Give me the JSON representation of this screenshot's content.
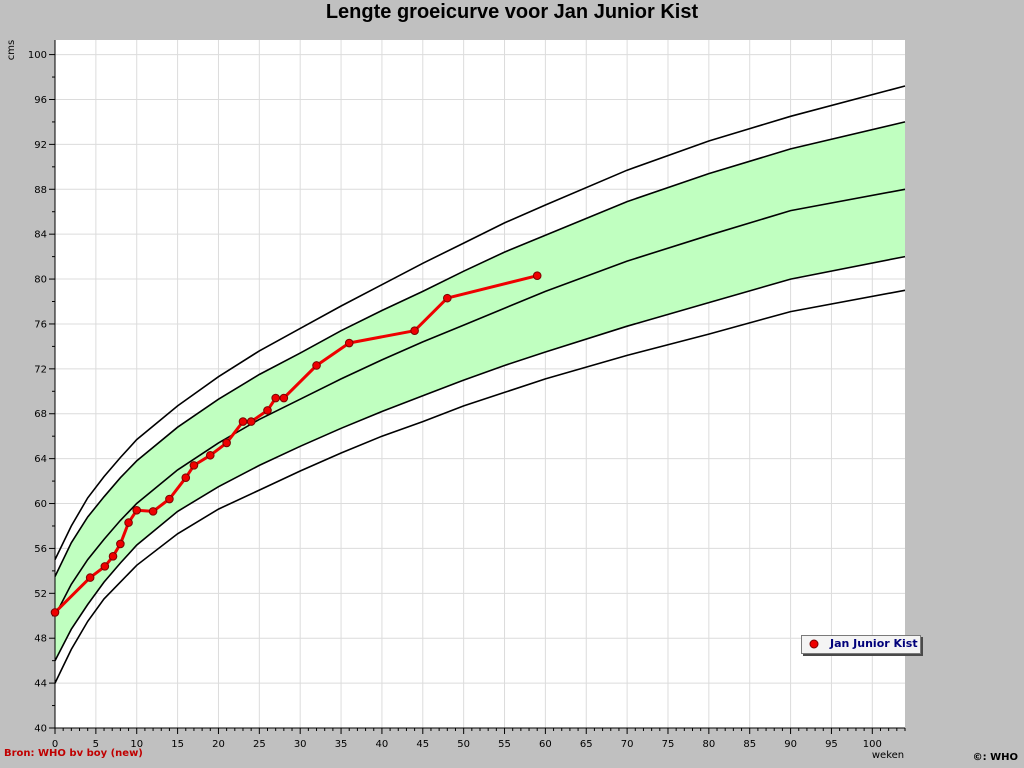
{
  "title": "Lengte groeicurve voor Jan Junior Kist",
  "source_label": "Bron: WHO bv boy (new)",
  "copyright_label": "©: WHO",
  "legend": {
    "label": "Jan Junior Kist"
  },
  "colors": {
    "background": "#c0c0c0",
    "plot_bg": "#ffffff",
    "band": "#c0ffc0",
    "grid": "#dcdcdc",
    "curve": "#000000",
    "series": "#ee0000"
  },
  "chart_data": {
    "type": "line",
    "title": "Lengte groeicurve voor Jan Junior Kist",
    "xlabel": "weken",
    "ylabel": "cms",
    "xlim": [
      0,
      104
    ],
    "ylim": [
      40,
      101.3
    ],
    "grid": true,
    "legend_position": "bottom-right",
    "x_ticks": [
      0,
      5,
      10,
      15,
      20,
      25,
      30,
      35,
      40,
      45,
      50,
      55,
      60,
      65,
      70,
      75,
      80,
      85,
      90,
      95,
      100
    ],
    "y_ticks": [
      40,
      44,
      48,
      52,
      56,
      60,
      64,
      68,
      72,
      76,
      80,
      84,
      88,
      92,
      96,
      100
    ],
    "reference_curves": [
      {
        "points": [
          [
            0,
            44.0
          ],
          [
            2,
            47.0
          ],
          [
            4,
            49.5
          ],
          [
            6,
            51.5
          ],
          [
            8,
            53.0
          ],
          [
            10,
            54.5
          ],
          [
            15,
            57.3
          ],
          [
            20,
            59.5
          ],
          [
            25,
            61.2
          ],
          [
            30,
            62.9
          ],
          [
            35,
            64.5
          ],
          [
            40,
            66.0
          ],
          [
            45,
            67.3
          ],
          [
            50,
            68.7
          ],
          [
            55,
            69.9
          ],
          [
            60,
            71.1
          ],
          [
            70,
            73.2
          ],
          [
            80,
            75.1
          ],
          [
            90,
            77.1
          ],
          [
            104,
            79.0
          ]
        ]
      },
      {
        "points": [
          [
            0,
            46.0
          ],
          [
            2,
            48.8
          ],
          [
            4,
            51.0
          ],
          [
            6,
            53.0
          ],
          [
            8,
            54.7
          ],
          [
            10,
            56.3
          ],
          [
            15,
            59.3
          ],
          [
            20,
            61.5
          ],
          [
            25,
            63.4
          ],
          [
            30,
            65.1
          ],
          [
            35,
            66.7
          ],
          [
            40,
            68.2
          ],
          [
            45,
            69.6
          ],
          [
            50,
            71.0
          ],
          [
            55,
            72.3
          ],
          [
            60,
            73.5
          ],
          [
            70,
            75.8
          ],
          [
            80,
            77.9
          ],
          [
            90,
            80.0
          ],
          [
            104,
            82.0
          ]
        ]
      },
      {
        "points": [
          [
            0,
            50.0
          ],
          [
            2,
            52.8
          ],
          [
            4,
            55.0
          ],
          [
            6,
            56.8
          ],
          [
            8,
            58.5
          ],
          [
            10,
            60.0
          ],
          [
            15,
            63.0
          ],
          [
            20,
            65.4
          ],
          [
            25,
            67.5
          ],
          [
            30,
            69.3
          ],
          [
            35,
            71.1
          ],
          [
            40,
            72.8
          ],
          [
            45,
            74.4
          ],
          [
            50,
            75.9
          ],
          [
            55,
            77.4
          ],
          [
            60,
            78.9
          ],
          [
            70,
            81.6
          ],
          [
            80,
            83.9
          ],
          [
            90,
            86.1
          ],
          [
            104,
            88.0
          ]
        ]
      },
      {
        "points": [
          [
            0,
            53.5
          ],
          [
            2,
            56.5
          ],
          [
            4,
            58.8
          ],
          [
            6,
            60.6
          ],
          [
            8,
            62.3
          ],
          [
            10,
            63.8
          ],
          [
            15,
            66.8
          ],
          [
            20,
            69.3
          ],
          [
            25,
            71.5
          ],
          [
            30,
            73.4
          ],
          [
            35,
            75.4
          ],
          [
            40,
            77.2
          ],
          [
            45,
            78.9
          ],
          [
            50,
            80.7
          ],
          [
            55,
            82.4
          ],
          [
            60,
            83.9
          ],
          [
            70,
            86.9
          ],
          [
            80,
            89.4
          ],
          [
            90,
            91.6
          ],
          [
            104,
            94.0
          ]
        ]
      },
      {
        "points": [
          [
            0,
            55.0
          ],
          [
            2,
            58.0
          ],
          [
            4,
            60.5
          ],
          [
            6,
            62.4
          ],
          [
            8,
            64.1
          ],
          [
            10,
            65.7
          ],
          [
            15,
            68.7
          ],
          [
            20,
            71.3
          ],
          [
            25,
            73.6
          ],
          [
            30,
            75.6
          ],
          [
            35,
            77.6
          ],
          [
            40,
            79.5
          ],
          [
            45,
            81.4
          ],
          [
            50,
            83.2
          ],
          [
            55,
            85.0
          ],
          [
            60,
            86.6
          ],
          [
            70,
            89.7
          ],
          [
            80,
            92.3
          ],
          [
            90,
            94.5
          ],
          [
            104,
            97.2
          ]
        ]
      }
    ],
    "band": {
      "lower_curve": 1,
      "upper_curve": 3
    },
    "series": [
      {
        "name": "Jan Junior Kist",
        "x": [
          0,
          4.3,
          6.1,
          7.1,
          8,
          9,
          10,
          12,
          14,
          16,
          17,
          19,
          21,
          23,
          24,
          26,
          27,
          28,
          32,
          36,
          44,
          48,
          59
        ],
        "y": [
          50.3,
          53.4,
          54.4,
          55.3,
          56.4,
          58.3,
          59.4,
          59.3,
          60.4,
          62.3,
          63.4,
          64.3,
          65.4,
          67.3,
          67.3,
          68.3,
          69.4,
          69.4,
          72.3,
          74.3,
          75.4,
          78.3,
          80.3
        ]
      }
    ]
  }
}
